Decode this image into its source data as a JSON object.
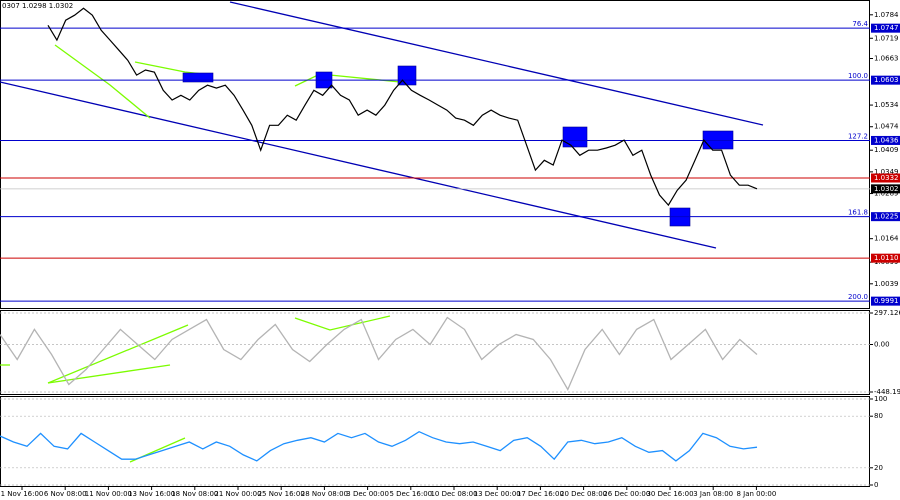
{
  "chart_data": [
    {
      "type": "line",
      "header": "0307 1.0298 1.0302",
      "color": "#000000",
      "values": [
        1.0755,
        1.0714,
        1.0769,
        1.0783,
        1.0802,
        1.0783,
        1.0741,
        1.0714,
        1.0686,
        1.0658,
        1.0617,
        1.0631,
        1.0625,
        1.0575,
        1.0548,
        1.0561,
        1.0548,
        1.0575,
        1.0589,
        1.0581,
        1.0589,
        1.0561,
        1.052,
        1.0478,
        1.0409,
        1.0478,
        1.0478,
        1.0506,
        1.0492,
        1.0534,
        1.0575,
        1.0561,
        1.0589,
        1.0561,
        1.0548,
        1.0506,
        1.052,
        1.0506,
        1.0534,
        1.0575,
        1.0603,
        1.0575,
        1.0561,
        1.0548,
        1.0534,
        1.052,
        1.0498,
        1.0492,
        1.0478,
        1.0506,
        1.052,
        1.0506,
        1.0498,
        1.0492,
        1.0423,
        1.0354,
        1.0381,
        1.0368,
        1.0437,
        1.0423,
        1.0395,
        1.0409,
        1.0409,
        1.0415,
        1.0423,
        1.0437,
        1.0395,
        1.0409,
        1.034,
        1.0285,
        1.0257,
        1.0298,
        1.0326,
        1.0381,
        1.0437,
        1.0409,
        1.0409,
        1.034,
        1.0312,
        1.0312,
        1.0302
      ],
      "ylim": [
        0.9972,
        1.0825
      ],
      "yticks": [
        1.0784,
        1.0719,
        1.0663,
        1.0534,
        1.0474,
        1.0409,
        1.0349,
        1.0289,
        1.0164,
        1.0099,
        1.0039
      ],
      "levels": [
        {
          "price": 1.0747,
          "fib": 76.4,
          "color": "#0000cc"
        },
        {
          "price": 1.0603,
          "fib": {
            "value": 100,
            "label": "100.0"
          },
          "color": "#0000cc"
        },
        {
          "price": 1.0436,
          "fib": 127.2,
          "color": "#0000cc"
        },
        {
          "price": 1.0332,
          "color": "#cc0000"
        },
        {
          "price": 1.0225,
          "fib": 161.8,
          "color": "#0000cc"
        },
        {
          "price": {
            "value": 1.011,
            "label": "1.0110"
          },
          "color": "#cc0000"
        },
        {
          "price": 0.9991,
          "fib": {
            "value": 200,
            "label": "200.0"
          },
          "color": "#0000cc"
        }
      ],
      "last_price": 1.0302
    },
    {
      "type": "line",
      "color": "#b4b4b4",
      "values": [
        94,
        -142,
        142,
        -94,
        -377,
        -236,
        -47,
        142,
        0,
        -142,
        47,
        142,
        236,
        -47,
        -142,
        47,
        189,
        -47,
        -160,
        0,
        142,
        236,
        -142,
        47,
        142,
        0,
        255,
        142,
        -142,
        0,
        94,
        47,
        -142,
        -425,
        -47,
        142,
        -94,
        142,
        236,
        -142,
        0,
        142,
        -142,
        47,
        -94
      ],
      "ylim": [
        -448.195,
        297.1261
      ],
      "yticks": [
        297.1261,
        {
          "value": 0,
          "label": "0.00"
        },
        -448.195
      ],
      "grid": true
    },
    {
      "type": "line",
      "color": "#1e90ff",
      "values": [
        57,
        50,
        45,
        60,
        45,
        42,
        60,
        50,
        40,
        30,
        30,
        35,
        40,
        45,
        50,
        42,
        50,
        45,
        35,
        28,
        40,
        48,
        52,
        55,
        50,
        60,
        55,
        60,
        50,
        45,
        52,
        62,
        55,
        50,
        48,
        50,
        45,
        40,
        52,
        55,
        45,
        30,
        50,
        52,
        48,
        50,
        55,
        45,
        38,
        40,
        28,
        40,
        60,
        55,
        45,
        42,
        44
      ],
      "ylim": [
        0,
        100
      ],
      "yticks": [
        100,
        80,
        20,
        0
      ],
      "grid": true,
      "time_labels": [
        "1 Nov 16:00",
        "6 Nov 08:00",
        "11 Nov 00:00",
        "13 Nov 16:00",
        "18 Nov 08:00",
        "21 Nov 00:00",
        "25 Nov 16:00",
        "28 Nov 08:00",
        "3 Dec 00:00",
        "5 Dec 16:00",
        "10 Dec 08:00",
        "13 Dec 00:00",
        "17 Dec 16:00",
        "20 Dec 08:00",
        "26 Dec 00:00",
        "30 Dec 16:00",
        "3 Jan 08:00",
        "8 Jan 00:00"
      ]
    }
  ]
}
